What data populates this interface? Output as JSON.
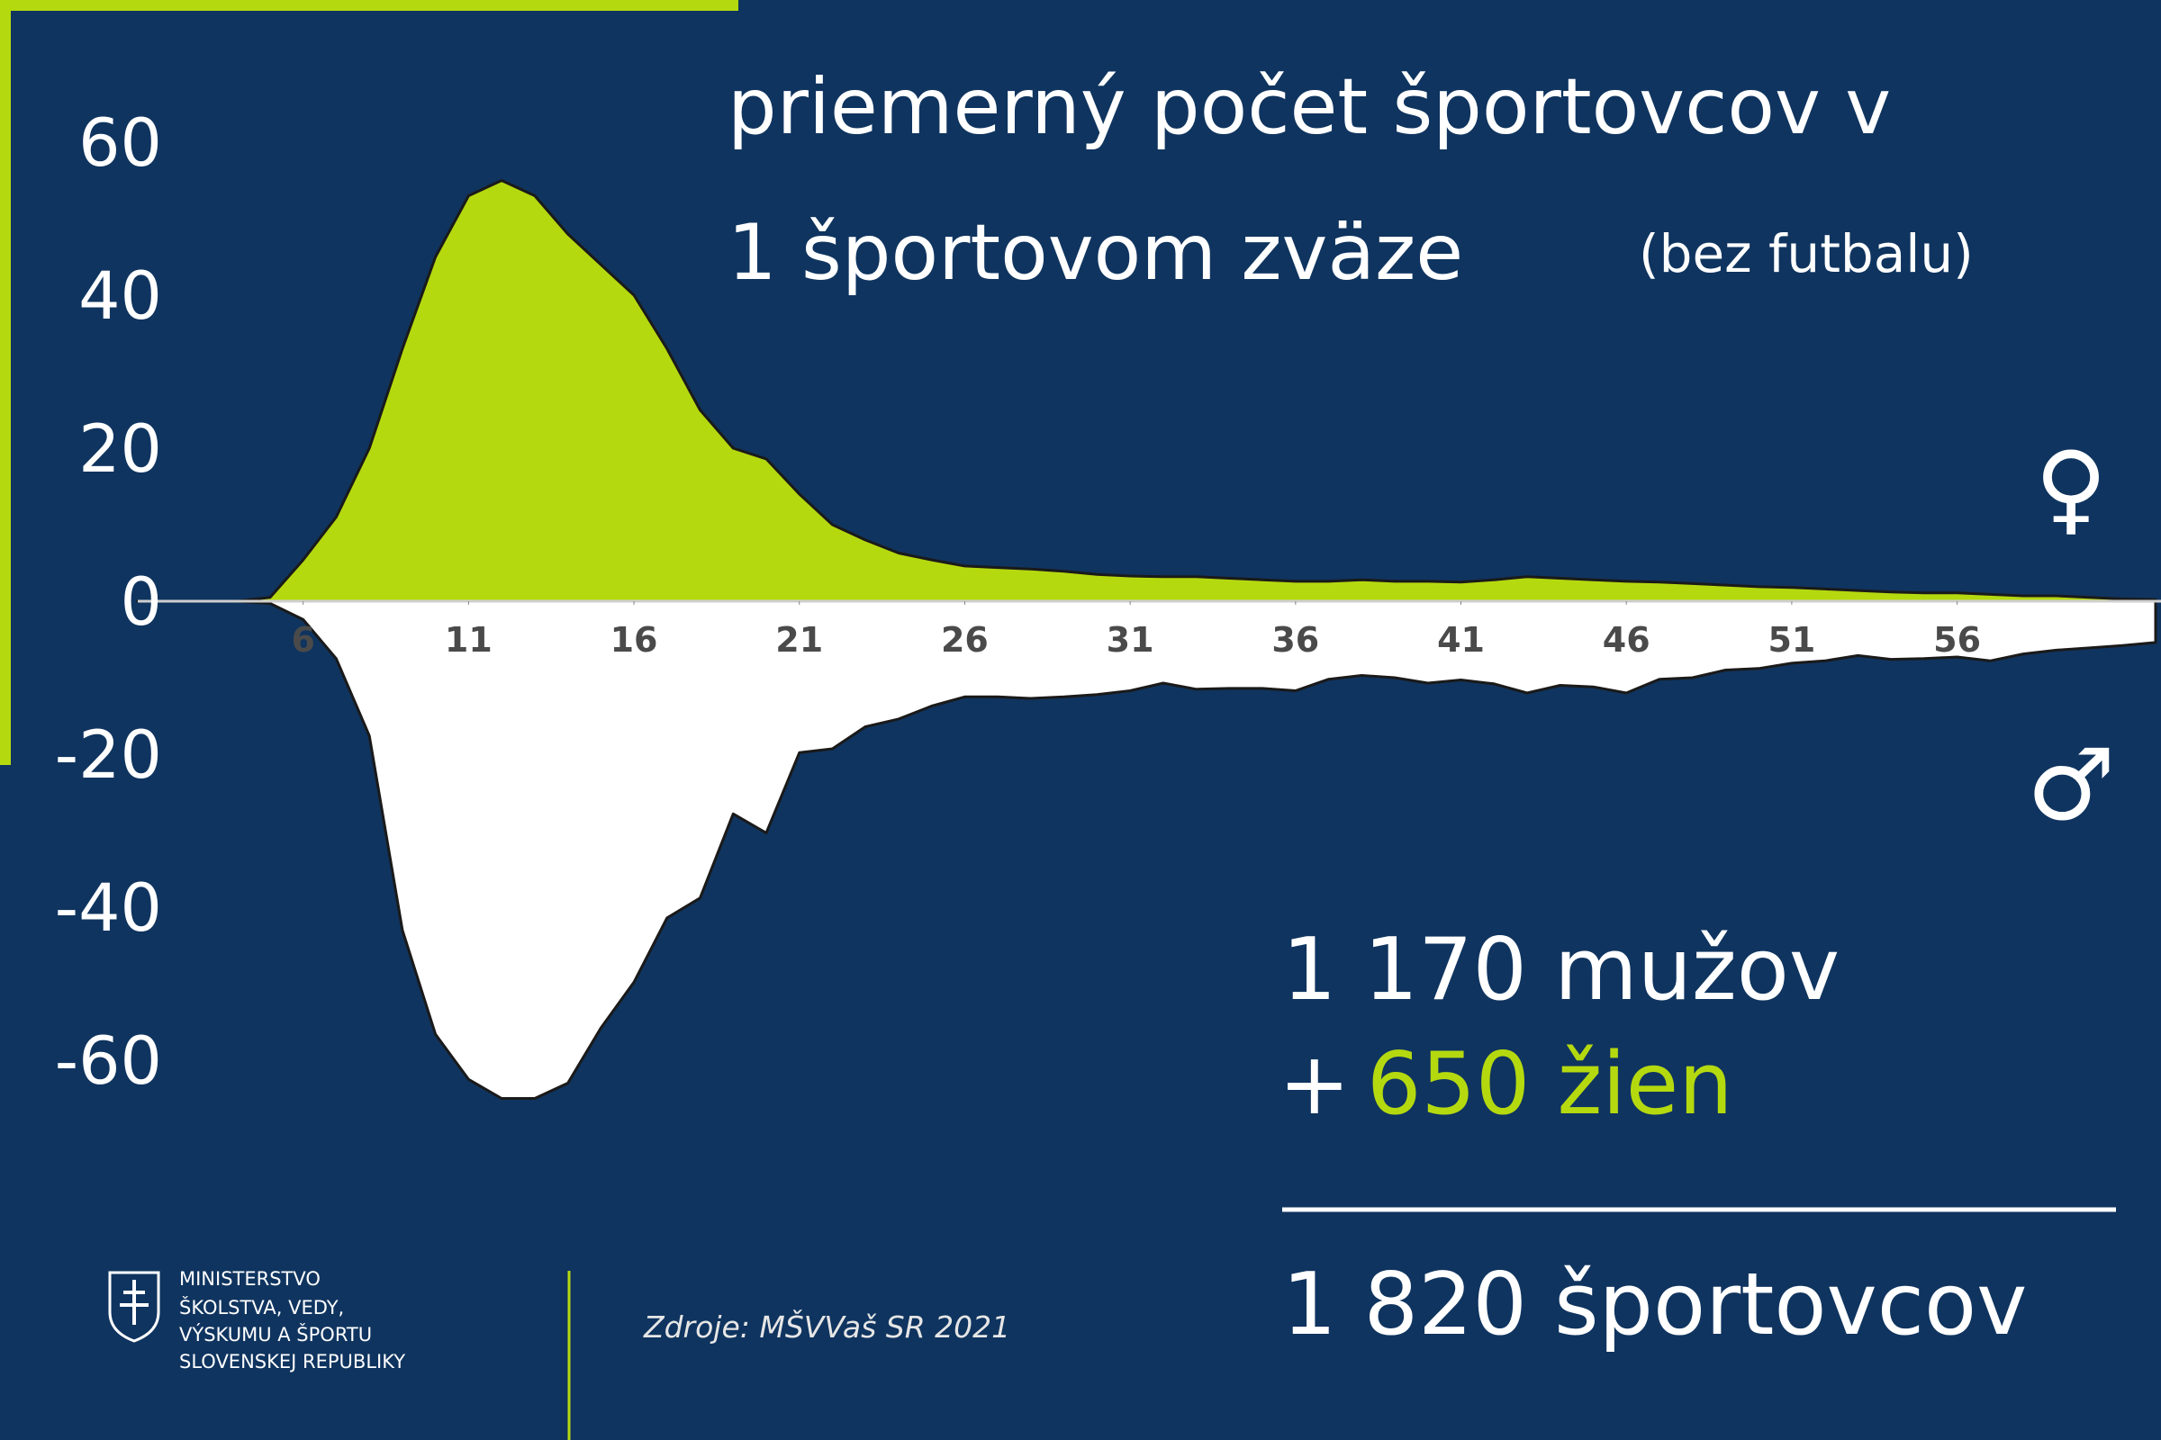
{
  "chart_data": {
    "type": "area",
    "title_lines": [
      "priemerný počet športovcov v",
      "1 športovom zväze"
    ],
    "subtitle": "(bez futbalu)",
    "x": [
      1,
      2,
      3,
      4,
      5,
      6,
      7,
      8,
      9,
      10,
      11,
      12,
      13,
      14,
      15,
      16,
      17,
      18,
      19,
      20,
      21,
      22,
      23,
      24,
      25,
      26,
      27,
      28,
      29,
      30,
      31,
      32,
      33,
      34,
      35,
      36,
      37,
      38,
      39,
      40,
      41,
      42,
      43,
      44,
      45,
      46,
      47,
      48,
      49,
      50,
      51,
      52,
      53,
      54,
      55,
      56,
      57,
      58,
      59,
      60,
      61,
      62
    ],
    "xlim": [
      1,
      62
    ],
    "xticks": [
      6,
      11,
      16,
      21,
      26,
      31,
      36,
      41,
      46,
      51,
      56
    ],
    "ylim": [
      -70,
      70
    ],
    "yticks": [
      60,
      40,
      20,
      0,
      -20,
      -40,
      -60
    ],
    "series": [
      {
        "name": "♀",
        "color": "#b5d90f",
        "values": [
          0,
          0,
          0,
          0,
          0.5,
          5.4,
          11,
          20,
          33,
          45,
          53,
          55,
          53,
          48,
          44,
          40,
          33,
          25,
          20,
          18.6,
          14,
          10,
          8,
          6.3,
          5.4,
          4.6,
          4.4,
          4.2,
          3.9,
          3.5,
          3.3,
          3.2,
          3.2,
          3,
          2.8,
          2.6,
          2.6,
          2.8,
          2.6,
          2.6,
          2.5,
          2.8,
          3.2,
          3,
          2.8,
          2.6,
          2.5,
          2.3,
          2.1,
          1.9,
          1.8,
          1.6,
          1.4,
          1.2,
          1.1,
          1.1,
          0.9,
          0.7,
          0.7,
          0.5,
          0.3,
          0.2
        ]
      },
      {
        "name": "♂",
        "color": "#ffffff",
        "values": [
          0,
          0,
          0,
          0,
          -0.3,
          -2.4,
          -7.5,
          -17.6,
          -43,
          -56.6,
          -62.5,
          -65,
          -65,
          -63,
          -55.8,
          -49.8,
          -41.4,
          -38.8,
          -27.8,
          -30.3,
          -19.8,
          -19.3,
          -16.4,
          -15.4,
          -13.7,
          -12.5,
          -12.5,
          -12.7,
          -12.5,
          -12.2,
          -11.7,
          -10.7,
          -11.5,
          -11.4,
          -11.4,
          -11.7,
          -10.2,
          -9.7,
          -10,
          -10.7,
          -10.3,
          -10.8,
          -12,
          -11,
          -11.2,
          -12,
          -10.2,
          -10,
          -9,
          -8.8,
          -8.1,
          -7.8,
          -7.1,
          -7.6,
          -7.5,
          -7.3,
          -7.8,
          -6.9,
          -6.4,
          -6.1,
          -5.8,
          -5.4
        ]
      }
    ],
    "summary": {
      "men": "1 170 mužov",
      "plus": "+",
      "women": "650 žien",
      "total": "1 820 športovcov"
    }
  },
  "footer": {
    "ministry_lines": [
      "MINISTERSTVO",
      "ŠKOLSTVA, VEDY,",
      "VÝSKUMU A ŠPORTU",
      "SLOVENSKEJ REPUBLIKY"
    ],
    "source": "Zdroje:  MŠVVaš SR  2021"
  }
}
